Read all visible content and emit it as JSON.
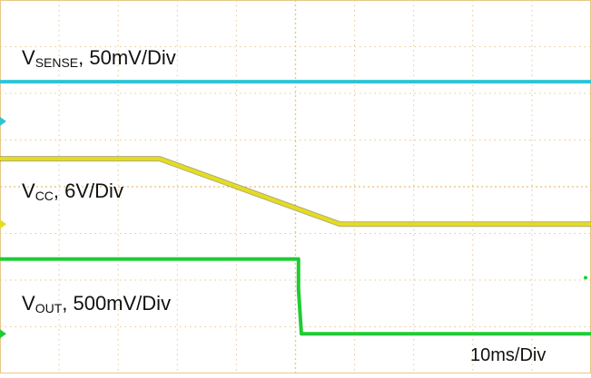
{
  "scope": {
    "time_per_div_label": "10ms/Div",
    "divisions": {
      "horizontal": 10,
      "vertical": 8
    }
  },
  "labels": {
    "sense": {
      "main": "V",
      "sub": "SENSE",
      "rest": ", 50mV/Div"
    },
    "vcc": {
      "main": "V",
      "sub": "CC",
      "rest": ", 6V/Div"
    },
    "vout": {
      "main": "V",
      "sub": "OUT",
      "rest": ", 500mV/Div"
    }
  },
  "colors": {
    "grid": "#e8c88a",
    "sense": "#2ec4d6",
    "vcc": "#e6dc1e",
    "vout": "#1fcc33",
    "trace_edge": "#6b6a10"
  },
  "chart_data": {
    "type": "line",
    "xlabel": "",
    "ylabel": "",
    "xlim": [
      0,
      10
    ],
    "ylim": [
      0,
      8
    ],
    "x_unit": "divisions (10ms/Div)",
    "grid": true,
    "series": [
      {
        "id": "sense",
        "x": [
          0,
          10
        ],
        "y": [
          6.25,
          6.25
        ],
        "marker_y": 5.4
      },
      {
        "id": "vcc",
        "x": [
          0,
          2.7,
          5.75,
          10
        ],
        "y": [
          4.6,
          4.6,
          3.2,
          3.2
        ],
        "marker_y": 3.2
      },
      {
        "id": "vout",
        "x": [
          0,
          5.05,
          5.05,
          5.1,
          10
        ],
        "y": [
          2.45,
          2.45,
          1.8,
          0.85,
          0.85
        ],
        "marker_y": 0.85
      }
    ]
  }
}
